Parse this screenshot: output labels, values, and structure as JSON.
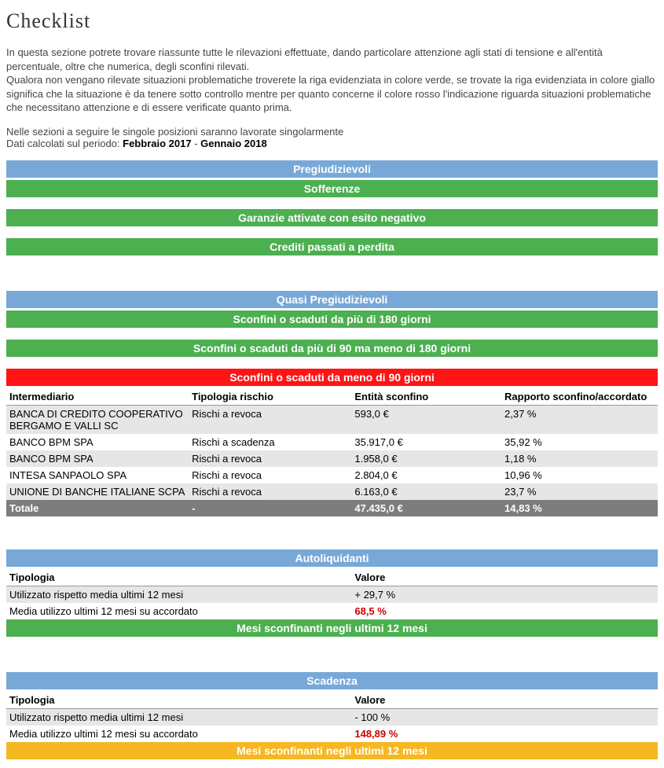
{
  "title": "Checklist",
  "intro_p1": "In questa sezione potrete trovare riassunte tutte le rilevazioni effettuate, dando particolare attenzione agli stati di tensione e all'entità percentuale, oltre che numerica, degli sconfini rilevati.",
  "intro_p2": "Qualora non vengano rilevate situazioni problematiche troverete la riga evidenziata in colore verde, se trovate la riga evidenziata in colore giallo significa che la situazione è da tenere sotto controllo mentre per quanto concerne il colore rosso l'indicazione riguarda situazioni problematiche che necessitano attenzione e di essere verificate quanto prima.",
  "followup": "Nelle sezioni a seguire le singole posizioni saranno lavorate singolarmente",
  "period_prefix": "Dati calcolati sul periodo: ",
  "period_start": "Febbraio 2017",
  "period_sep": " - ",
  "period_end": "Gennaio 2018",
  "colors": {
    "blue": "#77a8d8",
    "green": "#4caf50",
    "red": "#ff1414",
    "orange": "#f5b823",
    "row_alt": "#e6e6e6",
    "total_bg": "#7d7d7d",
    "alert_text": "#c00"
  },
  "section1": {
    "header": "Pregiudizievoli",
    "rows": [
      "Sofferenze",
      "Garanzie attivate con esito negativo",
      "Crediti passati a perdita"
    ]
  },
  "section2": {
    "header": "Quasi Pregiudizievoli",
    "row1": "Sconfini o scaduti da più di 180 giorni",
    "row2": "Sconfini o scaduti da più di 90 ma meno di 180 giorni",
    "row3": "Sconfini o scaduti da meno di 90 giorni"
  },
  "sconfini_table": {
    "headers": [
      "Intermediario",
      "Tipologia rischio",
      "Entità sconfino",
      "Rapporto sconfino/accordato"
    ],
    "rows": [
      {
        "c": [
          "BANCA DI CREDITO COOPERATIVO BERGAMO E VALLI SC",
          "Rischi a revoca",
          "593,0 €",
          "2,37 %"
        ],
        "alt": true
      },
      {
        "c": [
          "BANCO BPM SPA",
          "Rischi a scadenza",
          "35.917,0 €",
          "35,92 %"
        ],
        "alt": false
      },
      {
        "c": [
          "BANCO BPM SPA",
          "Rischi a revoca",
          "1.958,0 €",
          "1,18 %"
        ],
        "alt": true
      },
      {
        "c": [
          "INTESA SANPAOLO SPA",
          "Rischi a revoca",
          "2.804,0 €",
          "10,96 %"
        ],
        "alt": false
      },
      {
        "c": [
          "UNIONE DI BANCHE ITALIANE SCPA",
          "Rischi a revoca",
          "6.163,0 €",
          "23,7 %"
        ],
        "alt": true
      }
    ],
    "total": [
      "Totale",
      "-",
      "47.435,0  €",
      "14,83  %"
    ]
  },
  "autoliquidanti": {
    "header": "Autoliquidanti",
    "cols": [
      "Tipologia",
      "Valore"
    ],
    "rows": [
      {
        "c": [
          "Utilizzato rispetto media ultimi 12 mesi",
          "+ 29,7  %"
        ],
        "alt": true,
        "alert": false
      },
      {
        "c": [
          "Media utilizzo ultimi 12 mesi su accordato",
          "68,5  %"
        ],
        "alt": false,
        "alert": true
      }
    ],
    "footer": "Mesi sconfinanti negli ultimi 12 mesi"
  },
  "scadenza": {
    "header": "Scadenza",
    "cols": [
      "Tipologia",
      "Valore"
    ],
    "rows": [
      {
        "c": [
          "Utilizzato rispetto media ultimi 12 mesi",
          "- 100  %"
        ],
        "alt": true,
        "alert": false
      },
      {
        "c": [
          "Media utilizzo ultimi 12 mesi su accordato",
          "148,89  %"
        ],
        "alt": false,
        "alert": true
      }
    ],
    "footer": "Mesi sconfinanti negli ultimi 12 mesi"
  }
}
